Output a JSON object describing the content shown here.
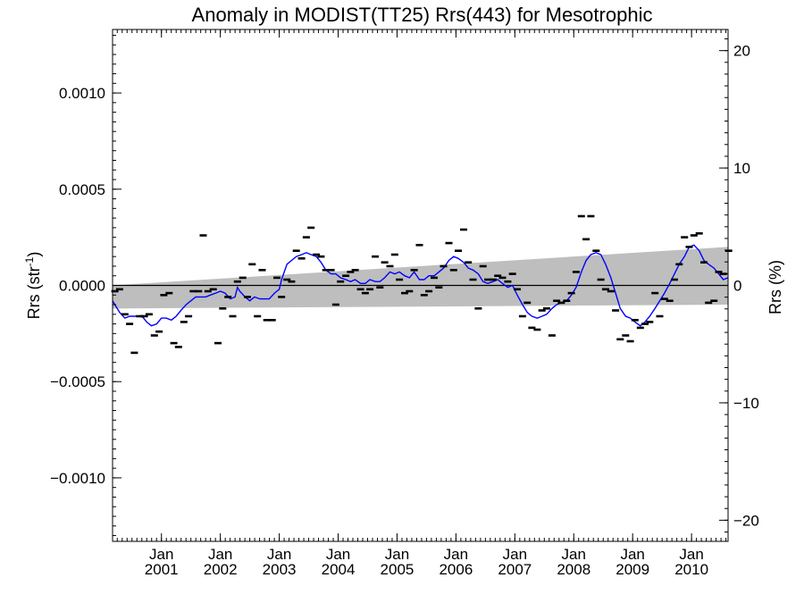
{
  "chart_data": {
    "type": "line",
    "title": "Anomaly in MODIST(TT25) Rrs(443) for Mesotrophic",
    "ylabel_left_prefix": "Rrs (str",
    "ylabel_left_sup": "-1",
    "ylabel_left_suffix": ")",
    "ylabel_right": "Rrs (%)",
    "xlim": [
      2000.17,
      2010.62
    ],
    "ylim": [
      -0.00133,
      0.00133
    ],
    "ylim_right_percent": [
      -21.8,
      21.8
    ],
    "grid": false,
    "x_ticks": [
      {
        "x": 2001.0,
        "month": "Jan",
        "year": "2001"
      },
      {
        "x": 2002.0,
        "month": "Jan",
        "year": "2002"
      },
      {
        "x": 2003.0,
        "month": "Jan",
        "year": "2003"
      },
      {
        "x": 2004.0,
        "month": "Jan",
        "year": "2004"
      },
      {
        "x": 2005.0,
        "month": "Jan",
        "year": "2005"
      },
      {
        "x": 2006.0,
        "month": "Jan",
        "year": "2006"
      },
      {
        "x": 2007.0,
        "month": "Jan",
        "year": "2007"
      },
      {
        "x": 2008.0,
        "month": "Jan",
        "year": "2008"
      },
      {
        "x": 2009.0,
        "month": "Jan",
        "year": "2009"
      },
      {
        "x": 2010.0,
        "month": "Jan",
        "year": "2010"
      }
    ],
    "y_ticks_left": [
      {
        "v": 0.001,
        "label": "0.0010"
      },
      {
        "v": 0.0005,
        "label": "0.0005"
      },
      {
        "v": 0.0,
        "label": "0.0000"
      },
      {
        "v": -0.0005,
        "label": "−0.0005"
      },
      {
        "v": -0.001,
        "label": "−0.0010"
      }
    ],
    "y_ticks_right": [
      {
        "v": 20,
        "label": "20"
      },
      {
        "v": 10,
        "label": "10"
      },
      {
        "v": 0,
        "label": "0"
      },
      {
        "v": -10,
        "label": "−10"
      },
      {
        "v": -20,
        "label": "−20"
      }
    ],
    "uncertainty_band": {
      "x": [
        2000.17,
        2010.62
      ],
      "lower": [
        -0.00012,
        -0.0001
      ],
      "upper": [
        0.0,
        0.0002
      ],
      "color": "#bebebe"
    },
    "zero_line": {
      "y": 0.0,
      "color": "#000000"
    },
    "series": [
      {
        "kind": "monthly_anomaly_markers",
        "color": "#000000",
        "points": [
          [
            2000.21,
            -3e-05
          ],
          [
            2000.29,
            -2e-05
          ],
          [
            2000.38,
            -0.00015
          ],
          [
            2000.46,
            -0.0002
          ],
          [
            2000.54,
            -0.00035
          ],
          [
            2000.63,
            -0.00016
          ],
          [
            2000.71,
            -0.00016
          ],
          [
            2000.79,
            -0.00015
          ],
          [
            2000.88,
            -0.00026
          ],
          [
            2000.96,
            -0.00024
          ],
          [
            2001.04,
            -5e-05
          ],
          [
            2001.13,
            -4e-05
          ],
          [
            2001.21,
            -0.0003
          ],
          [
            2001.29,
            -0.00032
          ],
          [
            2001.38,
            -0.00019
          ],
          [
            2001.46,
            -0.00016
          ],
          [
            2001.54,
            -3e-05
          ],
          [
            2001.63,
            -3e-05
          ],
          [
            2001.71,
            0.00026
          ],
          [
            2001.79,
            -3e-05
          ],
          [
            2001.88,
            -2e-05
          ],
          [
            2001.96,
            -0.0003
          ],
          [
            2002.04,
            -0.00012
          ],
          [
            2002.13,
            -6e-05
          ],
          [
            2002.21,
            -0.00016
          ],
          [
            2002.29,
            2e-05
          ],
          [
            2002.38,
            4e-05
          ],
          [
            2002.46,
            -6e-05
          ],
          [
            2002.54,
            0.00011
          ],
          [
            2002.63,
            -0.00016
          ],
          [
            2002.71,
            8e-05
          ],
          [
            2002.79,
            -0.00018
          ],
          [
            2002.88,
            -0.00018
          ],
          [
            2002.96,
            4e-05
          ],
          [
            2003.04,
            -6e-05
          ],
          [
            2003.13,
            3e-05
          ],
          [
            2003.21,
            2e-05
          ],
          [
            2003.29,
            0.00018
          ],
          [
            2003.38,
            0.00014
          ],
          [
            2003.46,
            0.00025
          ],
          [
            2003.54,
            0.0003
          ],
          [
            2003.63,
            0.00016
          ],
          [
            2003.71,
            0.00015
          ],
          [
            2003.79,
            8e-05
          ],
          [
            2003.88,
            8e-05
          ],
          [
            2003.96,
            -0.0001
          ],
          [
            2004.04,
            2e-05
          ],
          [
            2004.13,
            5e-05
          ],
          [
            2004.21,
            7e-05
          ],
          [
            2004.29,
            8e-05
          ],
          [
            2004.38,
            -2e-05
          ],
          [
            2004.46,
            -4e-05
          ],
          [
            2004.54,
            -2e-05
          ],
          [
            2004.63,
            0.00015
          ],
          [
            2004.71,
            -1e-05
          ],
          [
            2004.79,
            0.00012
          ],
          [
            2004.88,
            0.0001
          ],
          [
            2004.96,
            0.00016
          ],
          [
            2005.04,
            3e-05
          ],
          [
            2005.13,
            -4e-05
          ],
          [
            2005.21,
            -3e-05
          ],
          [
            2005.29,
            8e-05
          ],
          [
            2005.38,
            0.00021
          ],
          [
            2005.46,
            -5e-05
          ],
          [
            2005.54,
            -3e-05
          ],
          [
            2005.63,
            4e-05
          ],
          [
            2005.71,
            -1e-05
          ],
          [
            2005.79,
            0.0001
          ],
          [
            2005.88,
            0.00022
          ],
          [
            2005.96,
            8e-05
          ],
          [
            2006.04,
            0.00018
          ],
          [
            2006.13,
            0.00029
          ],
          [
            2006.21,
            0.00012
          ],
          [
            2006.29,
            3e-05
          ],
          [
            2006.38,
            -0.00012
          ],
          [
            2006.46,
            0.0001
          ],
          [
            2006.54,
            3e-05
          ],
          [
            2006.63,
            3e-05
          ],
          [
            2006.71,
            5e-05
          ],
          [
            2006.79,
            4e-05
          ],
          [
            2006.88,
            2e-05
          ],
          [
            2006.96,
            6e-05
          ],
          [
            2007.04,
            -2e-05
          ],
          [
            2007.13,
            -0.00016
          ],
          [
            2007.21,
            -9e-05
          ],
          [
            2007.29,
            -0.00022
          ],
          [
            2007.38,
            -0.00023
          ],
          [
            2007.46,
            -0.00013
          ],
          [
            2007.54,
            -0.00012
          ],
          [
            2007.63,
            -0.00026
          ],
          [
            2007.71,
            -8e-05
          ],
          [
            2007.79,
            -9e-05
          ],
          [
            2007.88,
            -8e-05
          ],
          [
            2007.96,
            -4e-05
          ],
          [
            2008.04,
            7e-05
          ],
          [
            2008.13,
            0.00036
          ],
          [
            2008.21,
            0.00024
          ],
          [
            2008.29,
            0.00036
          ],
          [
            2008.38,
            0.00018
          ],
          [
            2008.46,
            3e-05
          ],
          [
            2008.54,
            -2e-05
          ],
          [
            2008.63,
            -3e-05
          ],
          [
            2008.71,
            -0.00013
          ],
          [
            2008.79,
            -0.00028
          ],
          [
            2008.88,
            -0.00026
          ],
          [
            2008.96,
            -0.00029
          ],
          [
            2009.04,
            -0.00018
          ],
          [
            2009.13,
            -0.00022
          ],
          [
            2009.21,
            -0.0002
          ],
          [
            2009.29,
            -0.00019
          ],
          [
            2009.38,
            -4e-05
          ],
          [
            2009.46,
            -0.00016
          ],
          [
            2009.54,
            -7e-05
          ],
          [
            2009.63,
            -8e-05
          ],
          [
            2009.71,
            3e-05
          ],
          [
            2009.79,
            0.00011
          ],
          [
            2009.88,
            0.00025
          ],
          [
            2009.96,
            0.0002
          ],
          [
            2010.04,
            0.00026
          ],
          [
            2010.13,
            0.00027
          ],
          [
            2010.21,
            0.00012
          ],
          [
            2010.29,
            -9e-05
          ],
          [
            2010.38,
            -8e-05
          ],
          [
            2010.46,
            7e-05
          ],
          [
            2010.54,
            6e-05
          ],
          [
            2010.63,
            0.00018
          ]
        ]
      },
      {
        "kind": "smoothed_line",
        "color": "#0000ff",
        "points": [
          [
            2000.17,
            -8e-05
          ],
          [
            2000.29,
            -0.00014
          ],
          [
            2000.38,
            -0.00017
          ],
          [
            2000.46,
            -0.00016
          ],
          [
            2000.58,
            -0.00016
          ],
          [
            2000.67,
            -0.00016
          ],
          [
            2000.75,
            -0.00019
          ],
          [
            2000.83,
            -0.00021
          ],
          [
            2000.92,
            -0.0002
          ],
          [
            2001.0,
            -0.00017
          ],
          [
            2001.08,
            -0.00017
          ],
          [
            2001.17,
            -0.00018
          ],
          [
            2001.25,
            -0.00016
          ],
          [
            2001.33,
            -0.00013
          ],
          [
            2001.42,
            -0.0001
          ],
          [
            2001.5,
            -8e-05
          ],
          [
            2001.58,
            -6e-05
          ],
          [
            2001.67,
            -6e-05
          ],
          [
            2001.75,
            -6e-05
          ],
          [
            2001.83,
            -5e-05
          ],
          [
            2001.92,
            -4e-05
          ],
          [
            2002.0,
            -3e-05
          ],
          [
            2002.08,
            -4e-05
          ],
          [
            2002.17,
            -7e-05
          ],
          [
            2002.25,
            -6e-05
          ],
          [
            2002.29,
            -1e-05
          ],
          [
            2002.33,
            -3e-05
          ],
          [
            2002.42,
            -6e-05
          ],
          [
            2002.5,
            -8e-05
          ],
          [
            2002.58,
            -6e-05
          ],
          [
            2002.67,
            -7e-05
          ],
          [
            2002.75,
            -7e-05
          ],
          [
            2002.83,
            -7e-05
          ],
          [
            2002.92,
            -4e-05
          ],
          [
            2003.0,
            -2e-05
          ],
          [
            2003.04,
            3e-05
          ],
          [
            2003.13,
            0.00011
          ],
          [
            2003.21,
            0.00013
          ],
          [
            2003.29,
            0.00015
          ],
          [
            2003.38,
            0.00016
          ],
          [
            2003.46,
            0.00017
          ],
          [
            2003.54,
            0.00016
          ],
          [
            2003.63,
            0.00015
          ],
          [
            2003.71,
            0.00012
          ],
          [
            2003.79,
            8e-05
          ],
          [
            2003.88,
            6e-05
          ],
          [
            2003.96,
            6e-05
          ],
          [
            2004.04,
            4e-05
          ],
          [
            2004.13,
            3e-05
          ],
          [
            2004.21,
            2e-05
          ],
          [
            2004.29,
            3e-05
          ],
          [
            2004.38,
            1e-05
          ],
          [
            2004.46,
            1e-05
          ],
          [
            2004.54,
            3e-05
          ],
          [
            2004.63,
            2e-05
          ],
          [
            2004.71,
            2e-05
          ],
          [
            2004.79,
            4e-05
          ],
          [
            2004.88,
            7e-05
          ],
          [
            2004.96,
            6e-05
          ],
          [
            2005.04,
            7e-05
          ],
          [
            2005.13,
            5e-05
          ],
          [
            2005.21,
            4e-05
          ],
          [
            2005.29,
            7e-05
          ],
          [
            2005.38,
            3e-05
          ],
          [
            2005.46,
            3e-05
          ],
          [
            2005.54,
            5e-05
          ],
          [
            2005.63,
            5e-05
          ],
          [
            2005.71,
            7e-05
          ],
          [
            2005.79,
            9e-05
          ],
          [
            2005.88,
            0.00013
          ],
          [
            2005.96,
            0.00015
          ],
          [
            2006.04,
            0.00014
          ],
          [
            2006.13,
            0.00012
          ],
          [
            2006.21,
            9e-05
          ],
          [
            2006.29,
            8e-05
          ],
          [
            2006.38,
            6e-05
          ],
          [
            2006.46,
            2e-05
          ],
          [
            2006.54,
            1e-05
          ],
          [
            2006.63,
            2e-05
          ],
          [
            2006.71,
            3e-05
          ],
          [
            2006.79,
            1e-05
          ],
          [
            2006.88,
            -1e-05
          ],
          [
            2006.96,
            0.0
          ],
          [
            2007.04,
            -5e-05
          ],
          [
            2007.13,
            -0.0001
          ],
          [
            2007.21,
            -0.00014
          ],
          [
            2007.29,
            -0.00016
          ],
          [
            2007.38,
            -0.00017
          ],
          [
            2007.46,
            -0.00016
          ],
          [
            2007.54,
            -0.00015
          ],
          [
            2007.63,
            -0.00012
          ],
          [
            2007.71,
            -0.0001
          ],
          [
            2007.79,
            -9e-05
          ],
          [
            2007.88,
            -8e-05
          ],
          [
            2007.96,
            -5e-05
          ],
          [
            2008.04,
            -1e-05
          ],
          [
            2008.13,
            7e-05
          ],
          [
            2008.21,
            0.00013
          ],
          [
            2008.29,
            0.00016
          ],
          [
            2008.38,
            0.00017
          ],
          [
            2008.46,
            0.00016
          ],
          [
            2008.54,
            0.00011
          ],
          [
            2008.63,
            4e-05
          ],
          [
            2008.71,
            -4e-05
          ],
          [
            2008.79,
            -0.00012
          ],
          [
            2008.88,
            -0.00016
          ],
          [
            2008.96,
            -0.00017
          ],
          [
            2009.04,
            -0.00019
          ],
          [
            2009.13,
            -0.00021
          ],
          [
            2009.21,
            -0.00019
          ],
          [
            2009.29,
            -0.00016
          ],
          [
            2009.38,
            -0.00012
          ],
          [
            2009.46,
            -8e-05
          ],
          [
            2009.54,
            -4e-05
          ],
          [
            2009.63,
            1e-05
          ],
          [
            2009.71,
            6e-05
          ],
          [
            2009.79,
            0.00011
          ],
          [
            2009.88,
            0.00015
          ],
          [
            2009.96,
            0.0002
          ],
          [
            2010.04,
            0.00021
          ],
          [
            2010.13,
            0.00018
          ],
          [
            2010.21,
            0.00013
          ],
          [
            2010.29,
            0.00011
          ],
          [
            2010.38,
            9e-05
          ],
          [
            2010.46,
            6e-05
          ],
          [
            2010.54,
            3e-05
          ],
          [
            2010.62,
            4e-05
          ]
        ]
      }
    ]
  }
}
